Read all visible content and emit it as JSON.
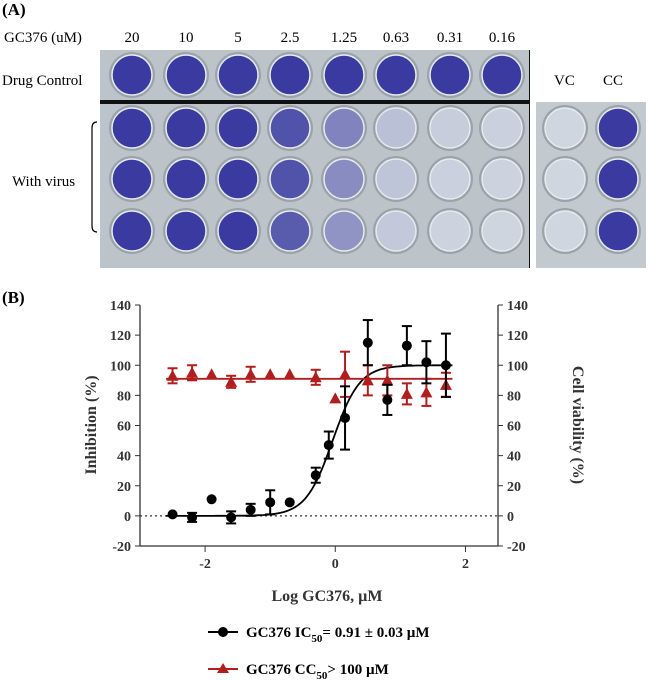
{
  "panel_a": {
    "label": "(A)",
    "concentration_header": "GC376 (uM)",
    "concentrations": [
      "20",
      "10",
      "5",
      "2.5",
      "1.25",
      "0.63",
      "0.31",
      "0.16"
    ],
    "row_labels": {
      "drug_control": "Drug Control",
      "with_virus": "With virus"
    },
    "controls": [
      "VC",
      "CC"
    ],
    "colors": {
      "stain": "#3a3aa0",
      "cleared": "#d6dde2",
      "plate": "#b9c1c7"
    }
  },
  "panel_b": {
    "label": "(B)"
  },
  "chart_data": {
    "type": "scatter",
    "xlabel": "Log GC376, µM",
    "ylabel": "Inhibition (%)",
    "ylabel_right": "Cell viability (%)",
    "xlim": [
      -3,
      2.5
    ],
    "ylim": [
      -20,
      140
    ],
    "x_ticks": [
      "-2",
      "0",
      "2"
    ],
    "y_ticks": [
      "-20",
      "0",
      "20",
      "40",
      "60",
      "80",
      "100",
      "120",
      "140"
    ],
    "reference_line": 0,
    "series": [
      {
        "name": "GC376 IC50",
        "legend_prefix": "GC376 IC",
        "legend_sub": "50",
        "legend_suffix": "= 0.91 ± 0.03 µM",
        "color": "#000000",
        "marker": "circle",
        "x": [
          -2.5,
          -2.2,
          -1.9,
          -1.6,
          -1.3,
          -1.0,
          -0.7,
          -0.3,
          -0.1,
          0.15,
          0.5,
          0.8,
          1.1,
          1.4,
          1.7
        ],
        "y": [
          1,
          -1,
          11,
          -1,
          4,
          9,
          9,
          27,
          47,
          65,
          115,
          77,
          113,
          102,
          100
        ],
        "err": [
          0,
          3,
          0,
          4,
          4,
          8,
          0,
          5,
          9,
          21,
          15,
          10,
          13,
          14,
          21
        ],
        "fit": {
          "bottom": 0,
          "top": 100,
          "log_ic50": -0.04,
          "hill": 2.1
        }
      },
      {
        "name": "GC376 CC50",
        "legend_prefix": "GC376 CC",
        "legend_sub": "50",
        "legend_suffix": "> 100 µM",
        "color": "#b01e1e",
        "marker": "triangle",
        "x": [
          -2.5,
          -2.2,
          -1.9,
          -1.6,
          -1.3,
          -1.0,
          -0.7,
          -0.3,
          0.15,
          0.5,
          0.8,
          1.1,
          1.4,
          1.7
        ],
        "y": [
          93,
          95,
          94,
          89,
          94,
          94,
          94,
          92,
          94,
          90,
          90,
          81,
          82,
          87
        ],
        "err": [
          5,
          5,
          0,
          4,
          5,
          0,
          0,
          5,
          15,
          10,
          10,
          7,
          9,
          8
        ],
        "fit": {
          "constant": 91
        }
      }
    ],
    "extra_points": [
      {
        "series": 1,
        "x": -0.0,
        "y": 78
      }
    ]
  }
}
